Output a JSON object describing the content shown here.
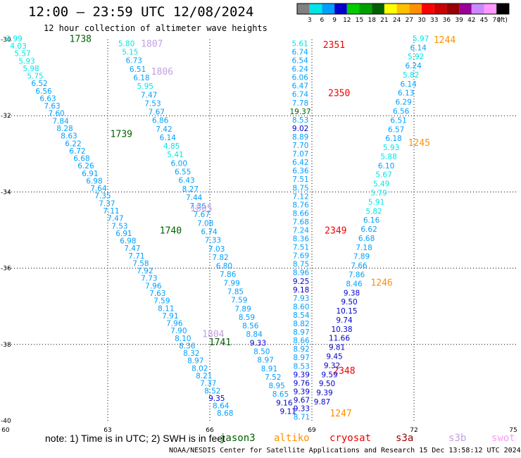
{
  "title": "12:00 – 23:59 UTC 12/08/2024",
  "subtitle": "12 hour collection of altimeter wave heights",
  "note": "note: 1) Time is in UTC; 2) SWH is in feet",
  "footer": "NOAA/NESDIS Center for Satellite Applications and Research   15 Dec 13:58:12 UTC 2024",
  "legend": {
    "labels": [
      "3",
      "6",
      "9",
      "12",
      "15",
      "18",
      "21",
      "24",
      "27",
      "30",
      "33",
      "36",
      "39",
      "42",
      "45",
      "70",
      "(ft)"
    ],
    "colors": [
      "#808080",
      "#00e5e5",
      "#00a0ff",
      "#0000cc",
      "#00cc00",
      "#00a000",
      "#006000",
      "#ffff00",
      "#ffc000",
      "#ff9000",
      "#ff0000",
      "#cc0000",
      "#990000",
      "#990099",
      "#cc88ff",
      "#ff99ff",
      "#000000"
    ]
  },
  "satellites": [
    {
      "name": "jason3",
      "color": "#006000"
    },
    {
      "name": "altiko",
      "color": "#ff9000"
    },
    {
      "name": "cryosat",
      "color": "#ee0000"
    },
    {
      "name": "s3a",
      "color": "#990000"
    },
    {
      "name": "s3b",
      "color": "#c0a0e0"
    },
    {
      "name": "swot",
      "color": "#ff99ff"
    }
  ],
  "chart_data": {
    "type": "scatter",
    "title": "12:00 – 23:59 UTC 12/08/2024",
    "xlim": [
      60,
      75
    ],
    "ylim": [
      -40,
      -30
    ],
    "x_ticks": [
      60,
      63,
      66,
      69,
      72,
      75
    ],
    "y_ticks": [
      -30,
      -32,
      -34,
      -36,
      -38,
      -40
    ],
    "grid": true,
    "time_labels": [
      {
        "text": "1738",
        "sat": "jason3",
        "lon": 62.2,
        "lat": -29.97
      },
      {
        "text": "1739",
        "sat": "jason3",
        "lon": 63.4,
        "lat": -32.47
      },
      {
        "text": "1740",
        "sat": "jason3",
        "lon": 64.85,
        "lat": -35.0
      },
      {
        "text": "1741",
        "sat": "jason3",
        "lon": 66.3,
        "lat": -37.93
      },
      {
        "text": "1807",
        "sat": "s3b",
        "lon": 64.3,
        "lat": -30.1
      },
      {
        "text": "1806",
        "sat": "s3b",
        "lon": 64.6,
        "lat": -30.83
      },
      {
        "text": "1805",
        "sat": "s3b",
        "lon": 65.75,
        "lat": -34.42
      },
      {
        "text": "1804",
        "sat": "s3b",
        "lon": 66.1,
        "lat": -37.72
      },
      {
        "text": "2351",
        "sat": "cryosat",
        "lon": 69.65,
        "lat": -30.13
      },
      {
        "text": "2350",
        "sat": "cryosat",
        "lon": 69.8,
        "lat": -31.4
      },
      {
        "text": "2349",
        "sat": "cryosat",
        "lon": 69.7,
        "lat": -35.0
      },
      {
        "text": "2348",
        "sat": "cryosat",
        "lon": 69.95,
        "lat": -38.68
      },
      {
        "text": "1244",
        "sat": "altiko",
        "lon": 72.9,
        "lat": -30.0
      },
      {
        "text": "1245",
        "sat": "altiko",
        "lon": 72.15,
        "lat": -32.7
      },
      {
        "text": "1246",
        "sat": "altiko",
        "lon": 71.05,
        "lat": -36.37
      },
      {
        "text": "1247",
        "sat": "altiko",
        "lon": 69.85,
        "lat": -39.8
      }
    ],
    "series": [
      {
        "name": "jason3",
        "lon_start": 60.25,
        "lat_start": -29.97,
        "lon_end": 66.45,
        "lat_end": -39.8,
        "values": [
          "3.99",
          "4.03",
          "5.57",
          "5.93",
          "5.98",
          "5.75",
          "6.52",
          "6.56",
          "6.63",
          "7.63",
          "7.60",
          "7.84",
          "8.28",
          "8.63",
          "6.22",
          "6.72",
          "6.68",
          "6.26",
          "6.91",
          "6.98",
          "7.64",
          "7.35",
          "7.37",
          "7.11",
          "7.47",
          "7.53",
          "6.91",
          "6.98",
          "7.47",
          "7.71",
          "7.58",
          "7.92",
          "7.73",
          "7.96",
          "7.63",
          "7.59",
          "8.11",
          "7.91",
          "7.96",
          "7.90",
          "8.10",
          "8.36",
          "8.32",
          "8.97",
          "8.02",
          "8.21",
          "7.37",
          "8.52",
          "9.35",
          "8.64",
          "8.68"
        ]
      },
      {
        "name": "s3b",
        "lon_start": 63.55,
        "lat_start": -30.1,
        "lon_end": 68.3,
        "lat_end": -39.75,
        "values": [
          "5.80",
          "5.15",
          "6.73",
          "6.51",
          "6.18",
          "5.95",
          "7.47",
          "7.53",
          "7.67",
          "6.86",
          "7.42",
          "6.14",
          "4.85",
          "5.41",
          "6.00",
          "6.55",
          "6.43",
          "8.27",
          "7.44",
          "7.36",
          "7.67",
          "7.08",
          "6.74",
          "7.33",
          "7.03",
          "7.82",
          "6.80",
          "7.86",
          "7.99",
          "7.85",
          "7.59",
          "7.89",
          "8.59",
          "8.56",
          "8.84",
          "9.33",
          "8.50",
          "8.97",
          "8.91",
          "7.52",
          "8.95",
          "8.65",
          "9.16",
          "9.11"
        ]
      },
      {
        "name": "cryosat",
        "lon_start": 68.65,
        "lat_start": -30.1,
        "lon_end": 68.7,
        "lat_end": -39.9,
        "values": [
          "5.61",
          "6.74",
          "6.54",
          "6.24",
          "6.06",
          "6.47",
          "6.74",
          "7.78",
          "19.37",
          "8.53",
          "9.02",
          "8.89",
          "7.70",
          "7.07",
          "6.42",
          "6.36",
          "7.51",
          "8.75",
          "7.12",
          "8.76",
          "8.66",
          "7.68",
          "7.24",
          "8.36",
          "7.51",
          "7.69",
          "8.75",
          "8.96",
          "9.25",
          "9.18",
          "7.93",
          "8.60",
          "8.54",
          "8.82",
          "8.97",
          "8.66",
          "8.92",
          "8.97",
          "8.53",
          "9.39",
          "9.76",
          "9.39",
          "9.67",
          "9.33",
          "8.71"
        ]
      },
      {
        "name": "altiko",
        "lon_start": 72.2,
        "lat_start": -29.97,
        "lon_end": 69.3,
        "lat_end": -39.5,
        "values": [
          "5.97",
          "6.14",
          "5.92",
          "6.24",
          "5.82",
          "6.14",
          "6.13",
          "6.29",
          "6.56",
          "6.51",
          "6.57",
          "6.18",
          "5.93",
          "5.88",
          "6.10",
          "5.67",
          "5.49",
          "5.79",
          "5.91",
          "5.82",
          "6.16",
          "6.62",
          "6.68",
          "7.18",
          "7.89",
          "7.66",
          "7.86",
          "8.46",
          "9.38",
          "9.50",
          "10.15",
          "9.74",
          "10.38",
          "11.66",
          "9.81",
          "9.45",
          "9.32",
          "9.59",
          "9.50",
          "9.39",
          "9.87"
        ]
      }
    ]
  }
}
